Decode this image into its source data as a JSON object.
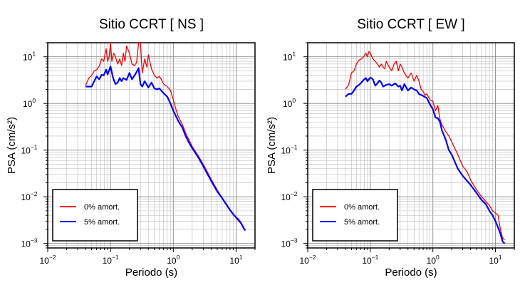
{
  "colors": {
    "s0": "#ff0000",
    "s5": "#0000ff"
  },
  "chart_data": [
    {
      "type": "line",
      "title": "Sitio CCRT [ NS ]",
      "xlabel": "Periodo (s)",
      "ylabel": "PSA (cm/s²)",
      "x_scale": "log",
      "y_scale": "log",
      "xlim": [
        0.01,
        20
      ],
      "ylim": [
        0.0008,
        20
      ],
      "grid": true,
      "legend_position": "bottom-left",
      "xticks": [
        {
          "v": 0.01,
          "b": "10",
          "e": "−2"
        },
        {
          "v": 0.1,
          "b": "10",
          "e": "−1"
        },
        {
          "v": 1,
          "b": "10",
          "e": "0"
        },
        {
          "v": 10,
          "b": "10",
          "e": "1"
        }
      ],
      "yticks": [
        {
          "v": 0.001,
          "b": "10",
          "e": "−3"
        },
        {
          "v": 0.01,
          "b": "10",
          "e": "−2"
        },
        {
          "v": 0.1,
          "b": "10",
          "e": "−1"
        },
        {
          "v": 1,
          "b": "10",
          "e": "0"
        },
        {
          "v": 10,
          "b": "10",
          "e": "1"
        }
      ],
      "series": [
        {
          "name": "0% amort.",
          "color": "#ff0000",
          "x": [
            0.04,
            0.045,
            0.05,
            0.055,
            0.06,
            0.066,
            0.072,
            0.078,
            0.085,
            0.09,
            0.095,
            0.1,
            0.105,
            0.112,
            0.12,
            0.13,
            0.14,
            0.15,
            0.16,
            0.17,
            0.18,
            0.2,
            0.22,
            0.24,
            0.26,
            0.28,
            0.3,
            0.32,
            0.35,
            0.38,
            0.4,
            0.45,
            0.5,
            0.55,
            0.6,
            0.65,
            0.7,
            0.8,
            0.9,
            1.0,
            1.1,
            1.2,
            1.4,
            1.6,
            1.8,
            2.0,
            2.5,
            3.0,
            4.0,
            5.0,
            6.0,
            7.0,
            8.0,
            9.0,
            10.0,
            11.0,
            12.0,
            13.0,
            14.0
          ],
          "y": [
            2.4,
            3.5,
            4.0,
            5.0,
            5.3,
            6.3,
            9.0,
            8.0,
            15.0,
            8.0,
            10.0,
            20.0,
            8.0,
            12.0,
            10.0,
            7.0,
            9.0,
            6.5,
            12.0,
            8.0,
            17.0,
            12.0,
            7.0,
            6.5,
            7.5,
            20.0,
            19.0,
            4.5,
            9.0,
            6.0,
            11.0,
            5.5,
            4.0,
            3.5,
            3.8,
            3.2,
            2.6,
            2.3,
            1.9,
            1.2,
            0.75,
            0.52,
            0.35,
            0.22,
            0.16,
            0.12,
            0.075,
            0.05,
            0.024,
            0.014,
            0.0095,
            0.007,
            0.0053,
            0.0043,
            0.0037,
            0.0033,
            0.0028,
            0.0023,
            0.0019
          ]
        },
        {
          "name": "5% amort.",
          "color": "#0000ff",
          "x": [
            0.04,
            0.045,
            0.05,
            0.055,
            0.06,
            0.066,
            0.072,
            0.078,
            0.085,
            0.09,
            0.1,
            0.11,
            0.12,
            0.13,
            0.14,
            0.15,
            0.16,
            0.18,
            0.2,
            0.22,
            0.25,
            0.28,
            0.3,
            0.32,
            0.35,
            0.4,
            0.45,
            0.5,
            0.55,
            0.6,
            0.7,
            0.8,
            0.9,
            1.0,
            1.2,
            1.4,
            1.6,
            1.8,
            2.0,
            2.5,
            3.0,
            4.0,
            5.0,
            6.0,
            7.0,
            8.0,
            9.0,
            10.0,
            11.0,
            12.0,
            13.0,
            14.0
          ],
          "y": [
            2.3,
            2.3,
            2.3,
            3.0,
            3.8,
            3.3,
            4.1,
            4.0,
            5.3,
            4.2,
            6.2,
            3.5,
            2.6,
            2.8,
            3.5,
            3.0,
            3.5,
            3.2,
            4.5,
            3.3,
            4.3,
            5.7,
            2.6,
            2.3,
            3.0,
            2.2,
            2.8,
            2.1,
            2.0,
            2.1,
            1.65,
            1.4,
            1.0,
            0.7,
            0.42,
            0.3,
            0.19,
            0.14,
            0.11,
            0.07,
            0.045,
            0.022,
            0.013,
            0.0093,
            0.0068,
            0.0052,
            0.0042,
            0.0036,
            0.0031,
            0.0027,
            0.0022,
            0.0019
          ]
        }
      ]
    },
    {
      "type": "line",
      "title": "Sitio CCRT [ EW ]",
      "xlabel": "Periodo (s)",
      "ylabel": "PSA (cm/s²)",
      "x_scale": "log",
      "y_scale": "log",
      "xlim": [
        0.01,
        20
      ],
      "ylim": [
        0.0008,
        20
      ],
      "grid": true,
      "legend_position": "bottom-left",
      "xticks": [
        {
          "v": 0.01,
          "b": "10",
          "e": "−2"
        },
        {
          "v": 0.1,
          "b": "10",
          "e": "−1"
        },
        {
          "v": 1,
          "b": "10",
          "e": "0"
        },
        {
          "v": 10,
          "b": "10",
          "e": "1"
        }
      ],
      "yticks": [
        {
          "v": 0.001,
          "b": "10",
          "e": "−3"
        },
        {
          "v": 0.01,
          "b": "10",
          "e": "−2"
        },
        {
          "v": 0.1,
          "b": "10",
          "e": "−1"
        },
        {
          "v": 1,
          "b": "10",
          "e": "0"
        },
        {
          "v": 10,
          "b": "10",
          "e": "1"
        }
      ],
      "series": [
        {
          "name": "0% amort.",
          "color": "#ff0000",
          "x": [
            0.04,
            0.045,
            0.05,
            0.055,
            0.06,
            0.066,
            0.072,
            0.078,
            0.085,
            0.09,
            0.095,
            0.1,
            0.11,
            0.12,
            0.13,
            0.14,
            0.15,
            0.16,
            0.17,
            0.18,
            0.2,
            0.22,
            0.24,
            0.26,
            0.28,
            0.3,
            0.32,
            0.35,
            0.38,
            0.4,
            0.45,
            0.5,
            0.55,
            0.6,
            0.65,
            0.7,
            0.75,
            0.8,
            0.9,
            1.0,
            1.1,
            1.2,
            1.3,
            1.4,
            1.6,
            1.8,
            2.0,
            2.5,
            3.0,
            3.5,
            4.0,
            5.0,
            6.0,
            7.0,
            8.0,
            9.0,
            10.0,
            11.0,
            12.0,
            13.0,
            14.0
          ],
          "y": [
            2.0,
            2.5,
            4.5,
            5.0,
            7.0,
            8.5,
            9.0,
            10.0,
            12.0,
            10.0,
            13.0,
            12.0,
            9.0,
            8.0,
            7.0,
            6.0,
            7.0,
            6.0,
            5.5,
            8.0,
            6.0,
            5.0,
            7.0,
            8.0,
            5.0,
            7.0,
            6.0,
            4.5,
            3.8,
            3.5,
            4.5,
            3.0,
            4.0,
            3.0,
            2.0,
            1.8,
            1.5,
            1.6,
            1.2,
            1.1,
            0.7,
            0.9,
            0.45,
            0.35,
            0.25,
            0.2,
            0.15,
            0.08,
            0.045,
            0.035,
            0.023,
            0.014,
            0.01,
            0.008,
            0.0065,
            0.005,
            0.0045,
            0.004,
            0.002,
            0.0013,
            0.0012
          ]
        },
        {
          "name": "5% amort.",
          "color": "#0000ff",
          "x": [
            0.04,
            0.045,
            0.05,
            0.055,
            0.06,
            0.066,
            0.072,
            0.078,
            0.085,
            0.09,
            0.1,
            0.11,
            0.12,
            0.13,
            0.14,
            0.15,
            0.16,
            0.18,
            0.2,
            0.22,
            0.25,
            0.28,
            0.3,
            0.32,
            0.35,
            0.4,
            0.45,
            0.5,
            0.55,
            0.6,
            0.7,
            0.8,
            0.9,
            1.0,
            1.1,
            1.2,
            1.3,
            1.4,
            1.6,
            1.8,
            2.0,
            2.5,
            3.0,
            4.0,
            5.0,
            6.0,
            7.0,
            8.0,
            9.0,
            10.0,
            11.0,
            12.0,
            13.0,
            14.0
          ],
          "y": [
            1.4,
            1.6,
            1.6,
            1.9,
            2.3,
            2.5,
            2.8,
            3.2,
            3.5,
            3.0,
            3.6,
            3.3,
            2.4,
            2.7,
            3.1,
            2.8,
            2.3,
            2.5,
            2.6,
            2.4,
            2.7,
            2.3,
            2.4,
            1.9,
            2.6,
            1.9,
            2.2,
            2.0,
            1.9,
            1.6,
            1.45,
            1.3,
            0.95,
            0.75,
            0.5,
            0.48,
            0.4,
            0.26,
            0.17,
            0.1,
            0.08,
            0.04,
            0.028,
            0.018,
            0.012,
            0.0085,
            0.007,
            0.005,
            0.004,
            0.003,
            0.0022,
            0.0016,
            0.0011,
            0.001
          ]
        }
      ]
    }
  ]
}
